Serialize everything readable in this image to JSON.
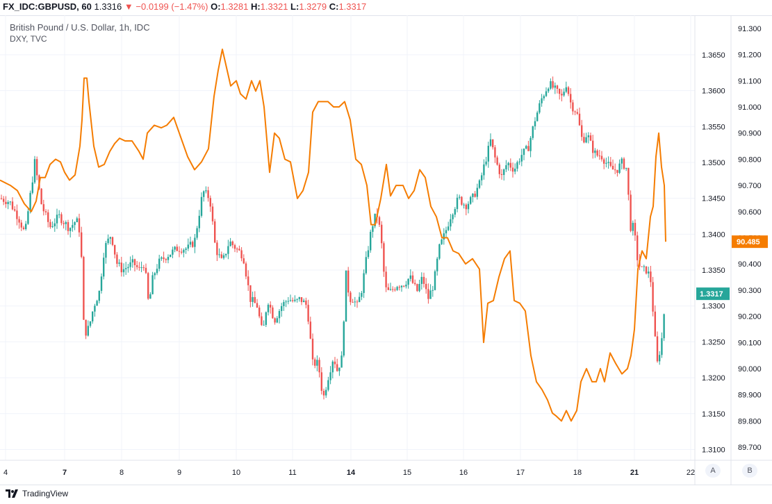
{
  "header": {
    "symbol": "FX_IDC:GBPUSD, 60",
    "last": "1.3316",
    "change_icon": "triangle-down-icon",
    "change": "−0.0199 (−1.47%)",
    "open_label": "O:",
    "open": "1.3281",
    "high_label": "H:",
    "high": "1.3321",
    "low_label": "L:",
    "low": "1.3279",
    "close_label": "C:",
    "close": "1.3317"
  },
  "title": "British Pound / U.S. Dollar, 1h, IDC",
  "subtitle": "DXY, TVC",
  "footer": {
    "brand": "TradingView",
    "scale_a": "A",
    "scale_b": "B"
  },
  "colors": {
    "up": "#26a69a",
    "down": "#ef5350",
    "dxy": "#f57c00",
    "grid": "#f0f3fa"
  },
  "chart_data": {
    "type": "line",
    "title": "British Pound / U.S. Dollar, 1h, IDC",
    "x_ticks": [
      "4",
      "7",
      "8",
      "9",
      "10",
      "11",
      "14",
      "15",
      "16",
      "17",
      "18",
      "21",
      "22"
    ],
    "y_axis_gbpusd": {
      "ticks": [
        "1.3100",
        "1.3150",
        "1.3200",
        "1.3250",
        "1.3300",
        "1.3350",
        "1.3400",
        "1.3450",
        "1.3500",
        "1.3550",
        "1.3600",
        "1.3650"
      ],
      "range": [
        1.3085,
        1.3705
      ],
      "last_label": "1.3317"
    },
    "y_axis_dxy": {
      "ticks": [
        "89.700",
        "89.800",
        "89.900",
        "90.000",
        "90.100",
        "90.200",
        "90.300",
        "90.400",
        "90.500",
        "90.600",
        "90.700",
        "90.800",
        "90.900",
        "91.000",
        "91.100",
        "91.200",
        "91.300"
      ],
      "range": [
        89.65,
        91.35
      ],
      "last_label": "90.485"
    },
    "series": [
      {
        "name": "GBPUSD",
        "style": "candlestick",
        "anchors": [
          [
            0,
            1.345
          ],
          [
            14,
            1.3445
          ],
          [
            28,
            1.342
          ],
          [
            36,
            1.34
          ],
          [
            50,
            1.35
          ],
          [
            60,
            1.344
          ],
          [
            72,
            1.341
          ],
          [
            85,
            1.3425
          ],
          [
            100,
            1.3408
          ],
          [
            110,
            1.342
          ],
          [
            116,
            1.34
          ],
          [
            121,
            1.326
          ],
          [
            128,
            1.327
          ],
          [
            135,
            1.33
          ],
          [
            143,
            1.332
          ],
          [
            150,
            1.338
          ],
          [
            160,
            1.34
          ],
          [
            168,
            1.336
          ],
          [
            176,
            1.335
          ],
          [
            192,
            1.336
          ],
          [
            200,
            1.335
          ],
          [
            208,
            1.336
          ],
          [
            214,
            1.33
          ],
          [
            220,
            1.334
          ],
          [
            228,
            1.336
          ],
          [
            240,
            1.337
          ],
          [
            255,
            1.338
          ],
          [
            270,
            1.338
          ],
          [
            280,
            1.339
          ],
          [
            292,
            1.346
          ],
          [
            302,
            1.345
          ],
          [
            310,
            1.338
          ],
          [
            320,
            1.336
          ],
          [
            330,
            1.339
          ],
          [
            340,
            1.338
          ],
          [
            350,
            1.337
          ],
          [
            360,
            1.331
          ],
          [
            370,
            1.33
          ],
          [
            378,
            1.326
          ],
          [
            385,
            1.331
          ],
          [
            395,
            1.328
          ],
          [
            405,
            1.33
          ],
          [
            415,
            1.331
          ],
          [
            425,
            1.3305
          ],
          [
            432,
            1.331
          ],
          [
            442,
            1.33
          ],
          [
            450,
            1.322
          ],
          [
            458,
            1.322
          ],
          [
            465,
            1.317
          ],
          [
            472,
            1.32
          ],
          [
            480,
            1.323
          ],
          [
            485,
            1.321
          ],
          [
            493,
            1.323
          ],
          [
            497,
            1.335
          ],
          [
            503,
            1.331
          ],
          [
            508,
            1.331
          ],
          [
            514,
            1.33
          ],
          [
            520,
            1.332
          ],
          [
            528,
            1.337
          ],
          [
            535,
            1.341
          ],
          [
            542,
            1.343
          ],
          [
            548,
            1.34
          ],
          [
            552,
            1.335
          ],
          [
            556,
            1.332
          ],
          [
            562,
            1.332
          ],
          [
            572,
            1.333
          ],
          [
            580,
            1.333
          ],
          [
            590,
            1.334
          ],
          [
            600,
            1.332
          ],
          [
            608,
            1.334
          ],
          [
            616,
            1.331
          ],
          [
            624,
            1.333
          ],
          [
            632,
            1.338
          ],
          [
            640,
            1.34
          ],
          [
            650,
            1.343
          ],
          [
            660,
            1.345
          ],
          [
            670,
            1.344
          ],
          [
            680,
            1.345
          ],
          [
            690,
            1.347
          ],
          [
            698,
            1.35
          ],
          [
            706,
            1.353
          ],
          [
            714,
            1.35
          ],
          [
            722,
            1.348
          ],
          [
            730,
            1.35
          ],
          [
            740,
            1.349
          ],
          [
            750,
            1.351
          ],
          [
            760,
            1.352
          ],
          [
            770,
            1.356
          ],
          [
            780,
            1.359
          ],
          [
            790,
            1.361
          ],
          [
            800,
            1.36
          ],
          [
            808,
            1.359
          ],
          [
            815,
            1.361
          ],
          [
            822,
            1.358
          ],
          [
            830,
            1.357
          ],
          [
            838,
            1.353
          ],
          [
            845,
            1.354
          ],
          [
            852,
            1.352
          ],
          [
            858,
            1.351
          ],
          [
            865,
            1.351
          ],
          [
            872,
            1.35
          ],
          [
            880,
            1.349
          ],
          [
            888,
            1.349
          ],
          [
            895,
            1.35
          ],
          [
            903,
            1.349
          ],
          [
            906,
            1.341
          ],
          [
            912,
            1.341
          ],
          [
            918,
            1.336
          ],
          [
            924,
            1.335
          ],
          [
            930,
            1.335
          ],
          [
            936,
            1.334
          ],
          [
            940,
            1.329
          ],
          [
            943,
            1.325
          ],
          [
            946,
            1.322
          ],
          [
            952,
            1.325
          ],
          [
            958,
            1.3317
          ]
        ]
      },
      {
        "name": "DXY",
        "style": "line",
        "anchors": [
          [
            0,
            90.72
          ],
          [
            15,
            90.7
          ],
          [
            25,
            90.68
          ],
          [
            35,
            90.63
          ],
          [
            45,
            90.6
          ],
          [
            52,
            90.64
          ],
          [
            58,
            90.73
          ],
          [
            65,
            90.73
          ],
          [
            72,
            90.78
          ],
          [
            80,
            90.8
          ],
          [
            87,
            90.79
          ],
          [
            93,
            90.75
          ],
          [
            100,
            90.72
          ],
          [
            108,
            90.74
          ],
          [
            115,
            90.85
          ],
          [
            118,
            90.95
          ],
          [
            121,
            91.11
          ],
          [
            125,
            91.11
          ],
          [
            128,
            91.02
          ],
          [
            135,
            90.85
          ],
          [
            142,
            90.77
          ],
          [
            150,
            90.78
          ],
          [
            158,
            90.83
          ],
          [
            165,
            90.86
          ],
          [
            172,
            90.88
          ],
          [
            180,
            90.87
          ],
          [
            190,
            90.87
          ],
          [
            200,
            90.83
          ],
          [
            206,
            90.8
          ],
          [
            212,
            90.9
          ],
          [
            222,
            90.93
          ],
          [
            232,
            90.92
          ],
          [
            240,
            90.93
          ],
          [
            250,
            90.96
          ],
          [
            262,
            90.87
          ],
          [
            270,
            90.81
          ],
          [
            280,
            90.76
          ],
          [
            290,
            90.79
          ],
          [
            300,
            90.84
          ],
          [
            308,
            91.04
          ],
          [
            314,
            91.14
          ],
          [
            320,
            91.22
          ],
          [
            326,
            91.15
          ],
          [
            332,
            91.08
          ],
          [
            340,
            91.1
          ],
          [
            346,
            91.05
          ],
          [
            354,
            91.03
          ],
          [
            362,
            91.1
          ],
          [
            368,
            91.06
          ],
          [
            374,
            91.1
          ],
          [
            380,
            91.0
          ],
          [
            388,
            90.75
          ],
          [
            395,
            90.9
          ],
          [
            402,
            90.88
          ],
          [
            410,
            90.8
          ],
          [
            418,
            90.79
          ],
          [
            428,
            90.65
          ],
          [
            436,
            90.68
          ],
          [
            444,
            90.75
          ],
          [
            450,
            90.98
          ],
          [
            458,
            91.02
          ],
          [
            465,
            91.02
          ],
          [
            472,
            91.02
          ],
          [
            480,
            91.0
          ],
          [
            488,
            91.0
          ],
          [
            496,
            91.02
          ],
          [
            504,
            90.95
          ],
          [
            512,
            90.8
          ],
          [
            520,
            90.78
          ],
          [
            528,
            90.7
          ],
          [
            534,
            90.55
          ],
          [
            540,
            90.55
          ],
          [
            548,
            90.65
          ],
          [
            556,
            90.78
          ],
          [
            562,
            90.66
          ],
          [
            570,
            90.7
          ],
          [
            580,
            90.7
          ],
          [
            588,
            90.65
          ],
          [
            596,
            90.68
          ],
          [
            604,
            90.76
          ],
          [
            612,
            90.73
          ],
          [
            620,
            90.62
          ],
          [
            628,
            90.58
          ],
          [
            636,
            90.5
          ],
          [
            644,
            90.5
          ],
          [
            652,
            90.45
          ],
          [
            660,
            90.44
          ],
          [
            670,
            90.4
          ],
          [
            680,
            90.42
          ],
          [
            690,
            90.38
          ],
          [
            696,
            90.1
          ],
          [
            702,
            90.25
          ],
          [
            710,
            90.26
          ],
          [
            718,
            90.35
          ],
          [
            726,
            90.42
          ],
          [
            734,
            90.45
          ],
          [
            740,
            90.26
          ],
          [
            748,
            90.25
          ],
          [
            756,
            90.22
          ],
          [
            764,
            90.05
          ],
          [
            772,
            89.95
          ],
          [
            780,
            89.92
          ],
          [
            788,
            89.88
          ],
          [
            795,
            89.83
          ],
          [
            800,
            89.82
          ],
          [
            808,
            89.8
          ],
          [
            815,
            89.84
          ],
          [
            822,
            89.8
          ],
          [
            830,
            89.84
          ],
          [
            836,
            89.95
          ],
          [
            844,
            90.0
          ],
          [
            852,
            89.95
          ],
          [
            858,
            89.95
          ],
          [
            864,
            90.0
          ],
          [
            870,
            89.95
          ],
          [
            878,
            90.06
          ],
          [
            886,
            90.02
          ],
          [
            895,
            89.98
          ],
          [
            903,
            90.0
          ],
          [
            908,
            90.05
          ],
          [
            913,
            90.15
          ],
          [
            918,
            90.38
          ],
          [
            924,
            90.45
          ],
          [
            930,
            90.42
          ],
          [
            936,
            90.58
          ],
          [
            940,
            90.62
          ],
          [
            944,
            90.81
          ],
          [
            948,
            90.9
          ],
          [
            952,
            90.77
          ],
          [
            956,
            90.7
          ],
          [
            958,
            90.485
          ]
        ]
      }
    ]
  }
}
